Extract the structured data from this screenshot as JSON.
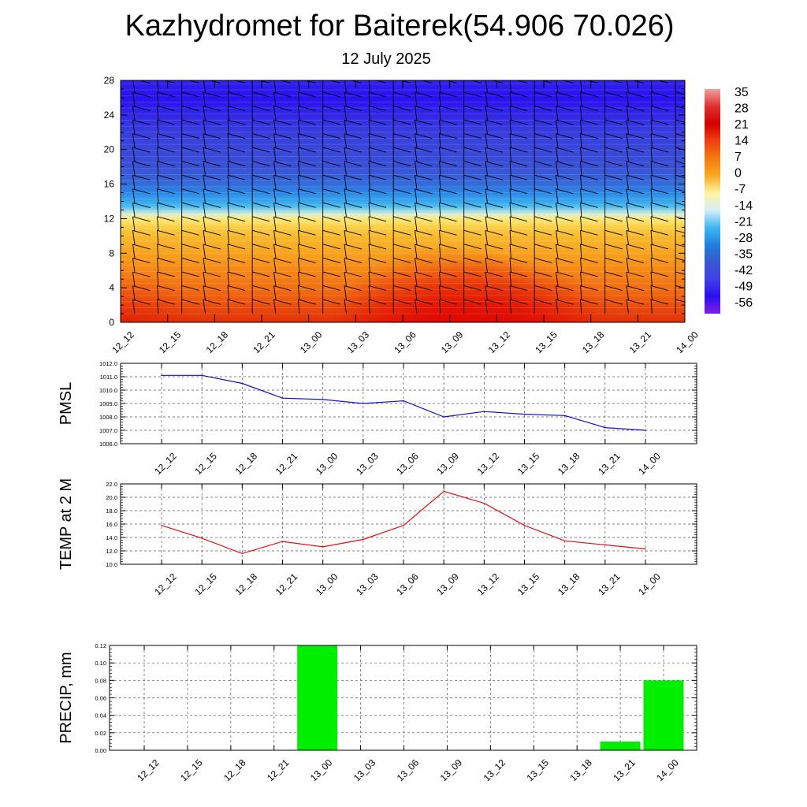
{
  "title": "Kazhydromet for Baiterek(54.906 70.026)",
  "subtitle": "12 July 2025",
  "time_labels": [
    "12_12",
    "12_15",
    "12_18",
    "12_21",
    "13_00",
    "13_03",
    "13_06",
    "13_09",
    "13_12",
    "13_15",
    "13_18",
    "13_21",
    "14_00"
  ],
  "chart_data": [
    {
      "type": "heatmap",
      "name": "cross-section",
      "x": [
        "12_12",
        "12_15",
        "12_18",
        "12_21",
        "13_00",
        "13_03",
        "13_06",
        "13_09",
        "13_12",
        "13_15",
        "13_18",
        "13_21",
        "14_00"
      ],
      "ylim": [
        0,
        28
      ],
      "yticks": [
        0,
        4,
        8,
        12,
        16,
        20,
        24,
        28
      ],
      "colorbar": {
        "labels": [
          "35",
          "28",
          "21",
          "14",
          "7",
          "0",
          "-7",
          "-14",
          "-21",
          "-28",
          "-35",
          "-42",
          "-49",
          "-56"
        ],
        "colors": [
          "#f0a0a0",
          "#e03030",
          "#d00000",
          "#f04010",
          "#f47a10",
          "#f8a820",
          "#fff5a0",
          "#d8eef8",
          "#40b8f0",
          "#2080e0",
          "#3858d0",
          "#4040e8",
          "#2a10f0",
          "#8020e0"
        ]
      },
      "temperature_profile": {
        "heights": [
          0,
          2,
          4,
          6,
          8,
          10,
          11,
          12,
          12.5,
          13.5,
          15,
          16,
          18,
          20,
          22,
          24,
          26,
          28
        ],
        "values": [
          20,
          16,
          12,
          9,
          5,
          1,
          -2,
          -6,
          -13,
          -22,
          -30,
          -35,
          -40,
          -42,
          -44,
          -48,
          -52,
          -49
        ]
      },
      "surface_temps": [
        15.8,
        13.9,
        11.6,
        13.4,
        12.6,
        13.7,
        15.8,
        20.9,
        19.1,
        15.8,
        13.5,
        12.9,
        12.3
      ]
    },
    {
      "type": "line",
      "name": "pmsl",
      "ylabel": "PMSL",
      "x": [
        "12_12",
        "12_15",
        "12_18",
        "12_21",
        "13_00",
        "13_03",
        "13_06",
        "13_09",
        "13_12",
        "13_15",
        "13_18",
        "13_21",
        "14_00"
      ],
      "values": [
        1011.1,
        1011.1,
        1010.5,
        1009.4,
        1009.3,
        1009.0,
        1009.2,
        1008.0,
        1008.4,
        1008.2,
        1008.1,
        1007.2,
        1007.0
      ],
      "ylim": [
        1006.0,
        1012.0
      ],
      "yticks": [
        "1006.0",
        "1007.0",
        "1008.0",
        "1009.0",
        "1010.0",
        "1011.0",
        "1012.0"
      ],
      "color": "#1010c8"
    },
    {
      "type": "line",
      "name": "temp2m",
      "ylabel": "TEMP at 2 M",
      "x": [
        "12_12",
        "12_15",
        "12_18",
        "12_21",
        "13_00",
        "13_03",
        "13_06",
        "13_09",
        "13_12",
        "13_15",
        "13_18",
        "13_21",
        "14_00"
      ],
      "values": [
        15.8,
        13.9,
        11.6,
        13.4,
        12.6,
        13.7,
        15.8,
        20.9,
        19.1,
        15.8,
        13.5,
        12.9,
        12.3
      ],
      "ylim": [
        10.0,
        22.0
      ],
      "yticks": [
        "10.0",
        "12.0",
        "14.0",
        "16.0",
        "18.0",
        "20.0",
        "22.0"
      ],
      "color": "#e01010"
    },
    {
      "type": "bar",
      "name": "precip",
      "ylabel": "PRECIP, mm",
      "categories": [
        "12_12",
        "12_15",
        "12_18",
        "12_21",
        "13_00",
        "13_03",
        "13_06",
        "13_09",
        "13_12",
        "13_15",
        "13_18",
        "13_21",
        "14_00"
      ],
      "values": [
        0,
        0,
        0,
        0,
        0.12,
        0,
        0,
        0,
        0,
        0,
        0,
        0.01,
        0.08
      ],
      "ylim": [
        0,
        0.12
      ],
      "yticks": [
        "0.00",
        "0.02",
        "0.04",
        "0.06",
        "0.08",
        "0.10",
        "0.12"
      ],
      "color": "#00ee00"
    }
  ]
}
